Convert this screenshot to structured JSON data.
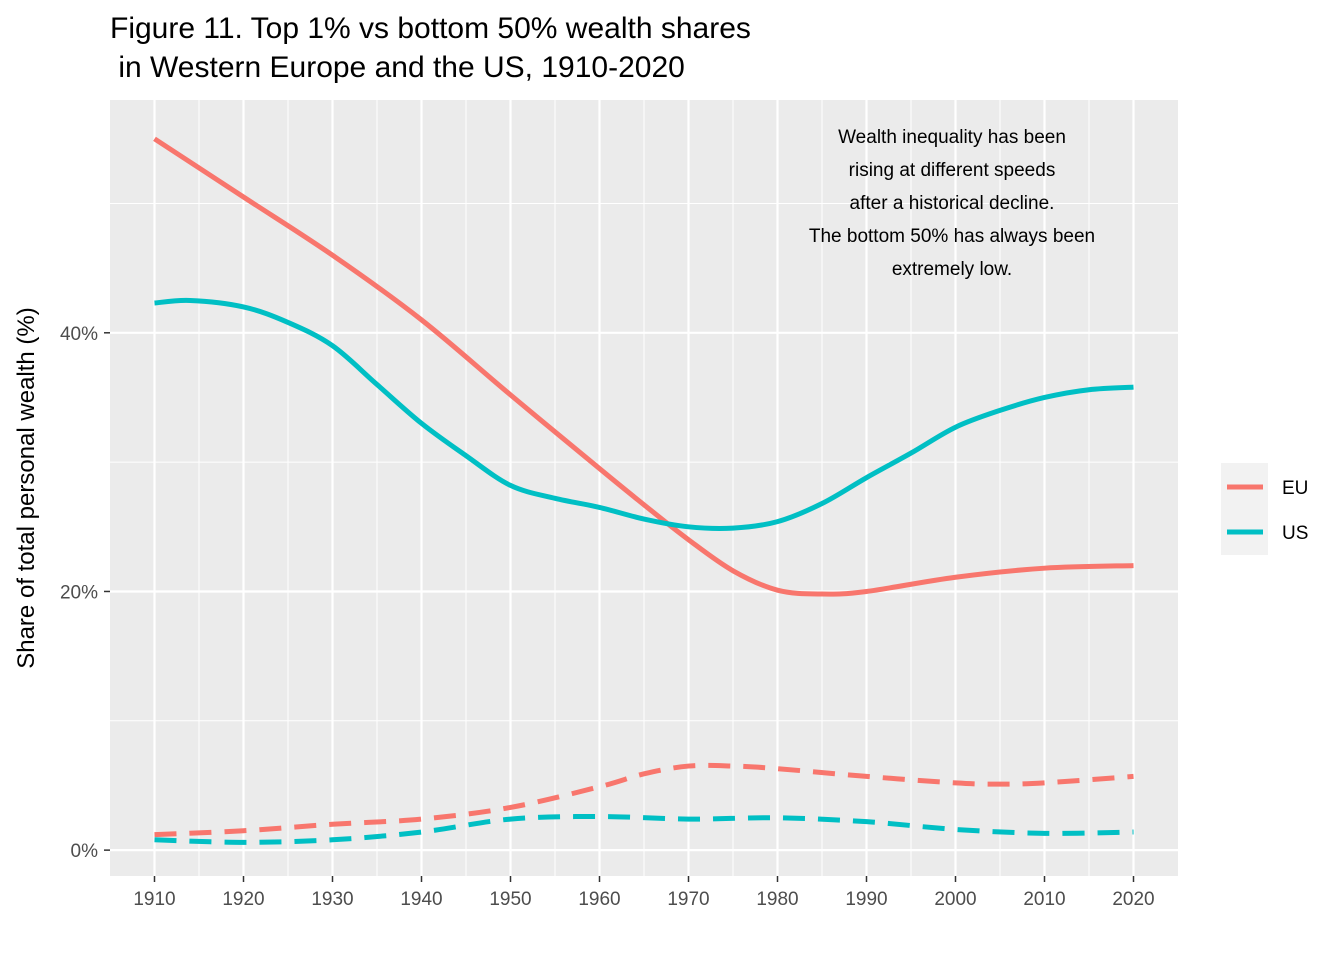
{
  "chart_data": {
    "type": "line",
    "title_line1": "Figure 11. Top 1% vs bottom 50% wealth shares",
    "title_line2": " in Western Europe and the US, 1910-2020",
    "xlabel": "",
    "ylabel": "Share of total personal wealth (%)",
    "xlim": [
      1905,
      2025
    ],
    "ylim": [
      -2,
      58
    ],
    "x_ticks": [
      1910,
      1920,
      1930,
      1940,
      1950,
      1960,
      1970,
      1980,
      1990,
      2000,
      2010,
      2020
    ],
    "x_tick_labels": [
      "1910",
      "1920",
      "1930",
      "1940",
      "1950",
      "1960",
      "1970",
      "1980",
      "1990",
      "2000",
      "2010",
      "2020"
    ],
    "y_ticks": [
      0,
      20,
      40
    ],
    "y_tick_labels": [
      "0%",
      "20%",
      "40%"
    ],
    "grid": true,
    "legend_position": "right",
    "legend": [
      {
        "label": "EU",
        "color": "#F8766D"
      },
      {
        "label": "US",
        "color": "#00BFC4"
      }
    ],
    "annotation_lines": [
      "Wealth inequality has been",
      "rising at different speeds",
      "after a historical decline.",
      "The bottom 50% has always been",
      "extremely low."
    ],
    "series": [
      {
        "group": "EU",
        "color": "#F8766D",
        "dash": "solid",
        "points": [
          [
            1910,
            55.0
          ],
          [
            1920,
            50.5
          ],
          [
            1930,
            46.0
          ],
          [
            1940,
            41.0
          ],
          [
            1950,
            35.2
          ],
          [
            1960,
            29.5
          ],
          [
            1965,
            26.7
          ],
          [
            1970,
            24.0
          ],
          [
            1975,
            21.6
          ],
          [
            1980,
            20.1
          ],
          [
            1985,
            19.8
          ],
          [
            1990,
            20.0
          ],
          [
            2000,
            21.1
          ],
          [
            2010,
            21.8
          ],
          [
            2020,
            22.0
          ]
        ]
      },
      {
        "group": "US",
        "color": "#00BFC4",
        "dash": "solid",
        "points": [
          [
            1910,
            42.3
          ],
          [
            1914,
            42.5
          ],
          [
            1920,
            42.0
          ],
          [
            1925,
            40.8
          ],
          [
            1930,
            39.0
          ],
          [
            1935,
            36.0
          ],
          [
            1940,
            33.0
          ],
          [
            1945,
            30.5
          ],
          [
            1950,
            28.2
          ],
          [
            1955,
            27.2
          ],
          [
            1960,
            26.5
          ],
          [
            1965,
            25.6
          ],
          [
            1970,
            25.0
          ],
          [
            1975,
            24.9
          ],
          [
            1980,
            25.4
          ],
          [
            1985,
            26.8
          ],
          [
            1990,
            28.8
          ],
          [
            1995,
            30.7
          ],
          [
            2000,
            32.7
          ],
          [
            2005,
            34.0
          ],
          [
            2010,
            35.0
          ],
          [
            2015,
            35.6
          ],
          [
            2020,
            35.8
          ]
        ]
      },
      {
        "group": "EU",
        "color": "#F8766D",
        "dash": "dashed",
        "points": [
          [
            1910,
            1.2
          ],
          [
            1920,
            1.5
          ],
          [
            1930,
            2.0
          ],
          [
            1940,
            2.4
          ],
          [
            1950,
            3.3
          ],
          [
            1960,
            4.9
          ],
          [
            1965,
            5.9
          ],
          [
            1970,
            6.5
          ],
          [
            1975,
            6.5
          ],
          [
            1980,
            6.3
          ],
          [
            1990,
            5.7
          ],
          [
            2000,
            5.2
          ],
          [
            2005,
            5.1
          ],
          [
            2010,
            5.2
          ],
          [
            2020,
            5.7
          ]
        ]
      },
      {
        "group": "US",
        "color": "#00BFC4",
        "dash": "dashed",
        "points": [
          [
            1910,
            0.8
          ],
          [
            1920,
            0.6
          ],
          [
            1930,
            0.8
          ],
          [
            1940,
            1.4
          ],
          [
            1950,
            2.4
          ],
          [
            1960,
            2.6
          ],
          [
            1970,
            2.4
          ],
          [
            1980,
            2.5
          ],
          [
            1990,
            2.2
          ],
          [
            2000,
            1.6
          ],
          [
            2010,
            1.3
          ],
          [
            2020,
            1.4
          ]
        ]
      }
    ]
  }
}
